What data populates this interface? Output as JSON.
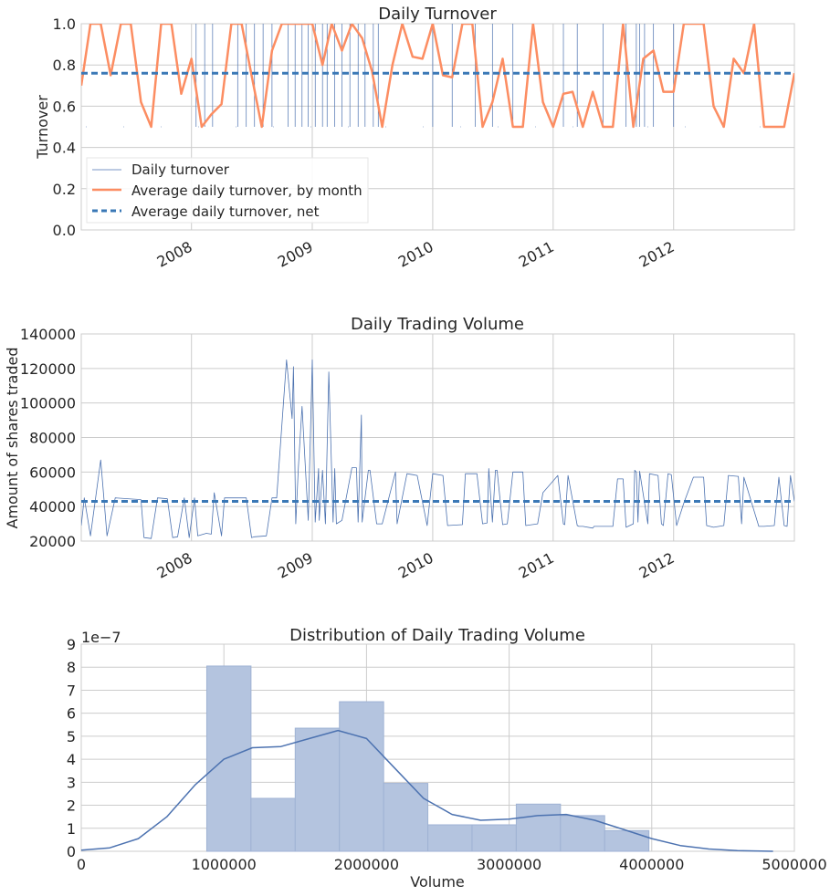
{
  "chart_data": [
    {
      "type": "line",
      "title": "Daily Turnover",
      "xlabel": "",
      "ylabel": "Turnover",
      "xlim": [
        "2007-02-01",
        "2013-01-01"
      ],
      "ylim": [
        0,
        1
      ],
      "x_tick_labels": [
        "2008",
        "2009",
        "2010",
        "2011",
        "2012"
      ],
      "y_tick_labels": [
        "0.0",
        "0.2",
        "0.4",
        "0.6",
        "0.8",
        "1.0"
      ],
      "grid": true,
      "legend_position": "lower-left",
      "legend": [
        "Daily turnover",
        "Average daily turnover, by month",
        "Average daily turnover, net"
      ],
      "series": [
        {
          "name": "Daily turnover",
          "color": "#4c72b0",
          "style": "thin-line",
          "spikes": [
            "2008-01-15",
            "2008-02-10",
            "2008-03-05",
            "2008-05-20",
            "2008-06-15",
            "2008-07-10",
            "2008-08-05",
            "2008-09-01",
            "2008-10-20",
            "2008-11-10",
            "2008-12-01",
            "2008-12-20",
            "2009-01-10",
            "2009-02-01",
            "2009-02-15",
            "2009-03-10",
            "2009-04-01",
            "2009-04-25",
            "2009-05-20",
            "2009-06-10",
            "2009-07-05",
            "2009-07-20",
            "2010-01-01",
            "2010-03-01",
            "2010-05-10",
            "2010-07-01",
            "2010-09-01",
            "2011-02-01",
            "2011-03-15",
            "2011-06-01",
            "2011-08-10",
            "2011-09-10",
            "2011-09-20",
            "2011-10-05",
            "2011-11-01",
            "2012-01-01"
          ],
          "spike_low": 0.5,
          "spike_high": 1.0
        },
        {
          "name": "Average daily turnover, by month",
          "color": "#fc8d62",
          "x": [
            "2007-02-01",
            "2007-03-01",
            "2007-04-01",
            "2007-05-01",
            "2007-06-01",
            "2007-07-01",
            "2007-08-01",
            "2007-09-01",
            "2007-10-01",
            "2007-11-01",
            "2007-12-01",
            "2008-01-01",
            "2008-02-01",
            "2008-03-01",
            "2008-04-01",
            "2008-05-01",
            "2008-06-01",
            "2008-07-01",
            "2008-08-01",
            "2008-09-01",
            "2008-10-01",
            "2008-11-01",
            "2008-12-01",
            "2009-01-01",
            "2009-02-01",
            "2009-03-01",
            "2009-04-01",
            "2009-05-01",
            "2009-06-01",
            "2009-07-01",
            "2009-08-01",
            "2009-09-01",
            "2009-10-01",
            "2009-11-01",
            "2009-12-01",
            "2010-01-01",
            "2010-02-01",
            "2010-03-01",
            "2010-04-01",
            "2010-05-01",
            "2010-06-01",
            "2010-07-01",
            "2010-08-01",
            "2010-09-01",
            "2010-10-01",
            "2010-11-01",
            "2010-12-01",
            "2011-01-01",
            "2011-02-01",
            "2011-03-01",
            "2011-04-01",
            "2011-05-01",
            "2011-06-01",
            "2011-07-01",
            "2011-08-01",
            "2011-09-01",
            "2011-10-01",
            "2011-11-01",
            "2011-12-01",
            "2012-01-01",
            "2012-02-01",
            "2012-03-01",
            "2012-04-01",
            "2012-05-01",
            "2012-06-01",
            "2012-07-01",
            "2012-08-01",
            "2012-09-01",
            "2012-10-01",
            "2012-11-01",
            "2012-12-01",
            "2013-01-01"
          ],
          "y": [
            0.7,
            1.0,
            1.0,
            0.75,
            1.0,
            1.0,
            0.62,
            0.5,
            1.0,
            1.0,
            0.66,
            0.83,
            0.5,
            0.56,
            0.61,
            1.0,
            1.0,
            0.75,
            0.5,
            0.87,
            1.0,
            1.0,
            1.0,
            1.0,
            0.8,
            1.0,
            0.87,
            1.0,
            0.93,
            0.77,
            0.5,
            0.8,
            1.0,
            0.84,
            0.83,
            1.0,
            0.75,
            0.74,
            1.0,
            1.0,
            0.5,
            0.62,
            0.83,
            0.5,
            0.5,
            1.0,
            0.62,
            0.5,
            0.66,
            0.67,
            0.5,
            0.67,
            0.5,
            0.5,
            1.0,
            0.5,
            0.83,
            0.87,
            0.67,
            0.67,
            1.0,
            1.0,
            1.0,
            0.6,
            0.5,
            0.83,
            0.76,
            1.0,
            0.5,
            0.5,
            0.5,
            0.76
          ]
        },
        {
          "name": "Average daily turnover, net",
          "color": "#3a78b6",
          "style": "dashed",
          "value": 0.76
        }
      ]
    },
    {
      "type": "line",
      "title": "Daily Trading Volume",
      "xlabel": "",
      "ylabel": "Amount of shares traded",
      "xlim": [
        "2007-02-01",
        "2013-01-01"
      ],
      "ylim": [
        20000,
        140000
      ],
      "x_tick_labels": [
        "2008",
        "2009",
        "2010",
        "2011",
        "2012"
      ],
      "y_tick_labels": [
        "20000",
        "40000",
        "60000",
        "80000",
        "100000",
        "120000",
        "140000"
      ],
      "grid": true,
      "series": [
        {
          "name": "Daily trading volume",
          "color": "#4c72b0",
          "x": [
            "2007-02-01",
            "2007-02-10",
            "2007-03-01",
            "2007-04-01",
            "2007-04-20",
            "2007-05-15",
            "2007-08-01",
            "2007-08-10",
            "2007-09-01",
            "2007-09-20",
            "2007-10-20",
            "2007-11-05",
            "2007-11-20",
            "2007-12-10",
            "2007-12-25",
            "2008-01-10",
            "2008-01-20",
            "2008-02-15",
            "2008-03-01",
            "2008-03-10",
            "2008-04-01",
            "2008-04-10",
            "2008-05-01",
            "2008-06-15",
            "2008-07-01",
            "2008-07-10",
            "2008-08-15",
            "2008-09-01",
            "2008-09-15",
            "2008-10-15",
            "2008-11-01",
            "2008-11-05",
            "2008-11-12",
            "2008-11-20",
            "2008-12-01",
            "2008-12-20",
            "2009-01-01",
            "2009-01-10",
            "2009-01-20",
            "2009-01-22",
            "2009-02-01",
            "2009-02-10",
            "2009-02-20",
            "2009-03-05",
            "2009-03-10",
            "2009-03-15",
            "2009-04-01",
            "2009-05-01",
            "2009-05-15",
            "2009-05-20",
            "2009-05-30",
            "2009-06-01",
            "2009-06-20",
            "2009-06-25",
            "2009-07-15",
            "2009-08-01",
            "2009-09-10",
            "2009-09-15",
            "2009-10-15",
            "2009-11-01",
            "2009-11-15",
            "2009-12-15",
            "2010-01-01",
            "2010-02-01",
            "2010-02-15",
            "2010-04-01",
            "2010-04-10",
            "2010-05-01",
            "2010-05-15",
            "2010-06-01",
            "2010-06-15",
            "2010-06-20",
            "2010-07-01",
            "2010-07-10",
            "2010-07-15",
            "2010-08-01",
            "2010-08-15",
            "2010-09-01",
            "2010-10-01",
            "2010-10-10",
            "2010-11-15",
            "2010-12-01",
            "2011-01-15",
            "2011-02-01",
            "2011-02-05",
            "2011-02-15",
            "2011-03-15",
            "2011-03-20",
            "2011-04-01",
            "2011-05-01",
            "2011-05-05",
            "2011-07-01",
            "2011-07-15",
            "2011-08-01",
            "2011-08-10",
            "2011-09-01",
            "2011-09-05",
            "2011-09-10",
            "2011-09-15",
            "2011-09-20",
            "2011-10-15",
            "2011-10-20",
            "2011-11-15",
            "2011-11-25",
            "2011-12-01",
            "2011-12-15",
            "2011-12-25",
            "2012-01-10",
            "2012-02-01",
            "2012-03-01",
            "2012-04-01",
            "2012-04-10",
            "2012-05-01",
            "2012-06-01",
            "2012-06-15",
            "2012-07-15",
            "2012-07-25",
            "2012-08-01",
            "2012-09-15",
            "2012-10-01",
            "2012-11-01",
            "2012-11-15",
            "2012-12-01",
            "2012-12-10",
            "2012-12-20",
            "2013-01-01"
          ],
          "y": [
            29000,
            45000,
            23000,
            67000,
            23000,
            45000,
            44000,
            22000,
            21500,
            45000,
            44500,
            22000,
            22500,
            45000,
            22000,
            45000,
            23000,
            24500,
            24000,
            48000,
            23000,
            45000,
            45000,
            45000,
            22000,
            22500,
            23000,
            45000,
            45000,
            125000,
            91000,
            121000,
            30000,
            63000,
            98000,
            32000,
            125000,
            31000,
            62000,
            32000,
            61000,
            30000,
            118000,
            31000,
            62000,
            30000,
            32000,
            62500,
            62500,
            31000,
            93000,
            31000,
            61000,
            61000,
            30000,
            30000,
            60000,
            30000,
            59000,
            58500,
            58000,
            29000,
            59000,
            58000,
            29000,
            29500,
            59000,
            59000,
            59000,
            30000,
            30500,
            62000,
            31000,
            61000,
            61000,
            29500,
            30000,
            60000,
            60000,
            29000,
            30000,
            48000,
            58000,
            30000,
            29500,
            58000,
            29000,
            28500,
            28500,
            27500,
            28500,
            28500,
            56000,
            56000,
            28000,
            30000,
            61000,
            60000,
            31000,
            60500,
            30000,
            59000,
            58000,
            30000,
            29000,
            59000,
            58500,
            29000,
            42000,
            57000,
            57000,
            29000,
            28000,
            29000,
            58000,
            57500,
            30000,
            57000,
            28500,
            28500,
            29000,
            57000,
            29000,
            28500,
            58000,
            43000
          ],
          "mean": 43000
        }
      ]
    },
    {
      "type": "histogram",
      "title": "Distribution of Daily Trading Volume",
      "xlabel": "Volume",
      "ylabel": "",
      "xlim": [
        0,
        5000000
      ],
      "ylim": [
        0,
        9
      ],
      "y_scale_label": "1e−7",
      "x_tick_labels": [
        "0",
        "1000000",
        "2000000",
        "3000000",
        "4000000",
        "5000000"
      ],
      "y_tick_labels": [
        "0",
        "1",
        "2",
        "3",
        "4",
        "5",
        "6",
        "7",
        "8",
        "9"
      ],
      "grid": true,
      "bin_edges": [
        880000,
        1190000,
        1500000,
        1810000,
        2120000,
        2430000,
        2740000,
        3050000,
        3360000,
        3670000,
        3980000
      ],
      "values": [
        8.05,
        2.3,
        5.35,
        6.5,
        2.95,
        1.15,
        1.15,
        2.05,
        1.55,
        0.9
      ],
      "bar_color": "#b4c4df",
      "kde": {
        "color": "#4c72b0",
        "x": [
          0,
          200000,
          400000,
          600000,
          800000,
          1000000,
          1200000,
          1400000,
          1600000,
          1800000,
          2000000,
          2200000,
          2400000,
          2600000,
          2800000,
          3000000,
          3200000,
          3400000,
          3600000,
          3800000,
          4000000,
          4200000,
          4400000,
          4600000,
          4850000
        ],
        "y": [
          0.05,
          0.15,
          0.55,
          1.5,
          2.9,
          4.0,
          4.5,
          4.55,
          4.9,
          5.25,
          4.9,
          3.6,
          2.3,
          1.6,
          1.35,
          1.4,
          1.55,
          1.6,
          1.35,
          0.95,
          0.55,
          0.25,
          0.1,
          0.03,
          0.0
        ]
      }
    }
  ]
}
